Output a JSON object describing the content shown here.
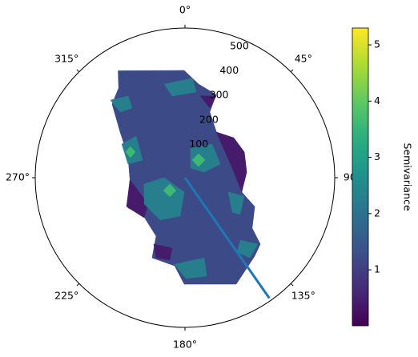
{
  "chart_data": {
    "type": "polar_contour",
    "theta_zero": "N",
    "theta_direction": "clockwise",
    "theta_ticks": [
      {
        "value": 0,
        "label": "0°"
      },
      {
        "value": 45,
        "label": "45°"
      },
      {
        "value": 90,
        "label": "90°"
      },
      {
        "value": 135,
        "label": "135°"
      },
      {
        "value": 180,
        "label": "180°"
      },
      {
        "value": 225,
        "label": "225°"
      },
      {
        "value": 270,
        "label": "270°"
      },
      {
        "value": 315,
        "label": "315°"
      }
    ],
    "rlim": [
      0,
      565
    ],
    "rticks": [
      100,
      200,
      300,
      400,
      500
    ],
    "regions": [
      {
        "level": 1.2,
        "points": [
          [
            328,
            476
          ],
          [
            359.6,
            405
          ],
          [
            8.3,
            357
          ],
          [
            20.6,
            335
          ],
          [
            20.7,
            265
          ],
          [
            38.3,
            200
          ],
          [
            61.8,
            237
          ],
          [
            84.7,
            228
          ],
          [
            104.2,
            221
          ],
          [
            112.5,
            285
          ],
          [
            126.9,
            317
          ],
          [
            131.4,
            379
          ],
          [
            138.4,
            396
          ],
          [
            154.3,
            446
          ],
          [
            180.4,
            402
          ],
          [
            186.7,
            335
          ],
          [
            202.3,
            327
          ],
          [
            206.3,
            246
          ],
          [
            229,
            212
          ],
          [
            241.8,
            243
          ],
          [
            268.3,
            208
          ],
          [
            290.8,
            230
          ],
          [
            305.1,
            299
          ],
          [
            315.3,
            391
          ],
          [
            323.5,
            421
          ]
        ]
      },
      {
        "level": 0.4,
        "points": [
          [
            34.4,
            209
          ],
          [
            50.7,
            238
          ],
          [
            66.6,
            244
          ],
          [
            84.8,
            234
          ],
          [
            104.2,
            221
          ],
          [
            78.5,
            182
          ]
        ]
      },
      {
        "level": 0.4,
        "points": [
          [
            267.5,
            208
          ],
          [
            243.7,
            246
          ],
          [
            225.6,
            216
          ],
          [
            234.3,
            171
          ],
          [
            258,
            188
          ]
        ]
      },
      {
        "level": 0.4,
        "points": [
          [
            10.6,
            314
          ],
          [
            20.9,
            330
          ],
          [
            19.6,
            279
          ]
        ]
      },
      {
        "level": 0.4,
        "points": [
          [
            205.2,
            277
          ],
          [
            190.3,
            270
          ],
          [
            190.5,
            316
          ],
          [
            199.8,
            321
          ]
        ]
      },
      {
        "level": 2.3,
        "points": [
          [
            316.2,
            406
          ],
          [
            325.2,
            375
          ],
          [
            322.8,
            330
          ],
          [
            315.4,
            348
          ]
        ]
      },
      {
        "level": 2.3,
        "points": [
          [
            347.5,
            362
          ],
          [
            4.2,
            376
          ],
          [
            7.5,
            326
          ],
          [
            351.1,
            312
          ]
        ]
      },
      {
        "level": 2.3,
        "points": [
          [
            261.1,
            156
          ],
          [
            270,
            79
          ],
          [
            183.2,
            54
          ],
          [
            187.1,
            146
          ],
          [
            210.3,
            185
          ],
          [
            237.1,
            183
          ]
        ]
      },
      {
        "level": 2.3,
        "points": [
          [
            10.7,
            114
          ],
          [
            39,
            163
          ],
          [
            68.9,
            143
          ],
          [
            73.7,
            76
          ],
          [
            30.3,
            42
          ]
        ]
      },
      {
        "level": 2.3,
        "points": [
          [
            298,
            270
          ],
          [
            310.4,
            242
          ],
          [
            292.5,
            173
          ],
          [
            283.5,
            221
          ]
        ]
      },
      {
        "level": 2.3,
        "points": [
          [
            108.4,
            172
          ],
          [
            107.3,
            234
          ],
          [
            123.7,
            250
          ],
          [
            126.1,
            221
          ]
        ]
      },
      {
        "level": 2.3,
        "points": [
          [
            186.9,
            329
          ],
          [
            166.5,
            311
          ],
          [
            167.6,
            380
          ],
          [
            179.5,
            381
          ]
        ]
      },
      {
        "level": 2.3,
        "points": [
          [
            138.5,
            315
          ],
          [
            132.4,
            372
          ],
          [
            141,
            389
          ],
          [
            145,
            343
          ]
        ]
      },
      {
        "level": 3.6,
        "points": [
          [
            29.5,
            104
          ],
          [
            48.7,
            101
          ],
          [
            50.5,
            66
          ],
          [
            22.2,
            72
          ]
        ]
      },
      {
        "level": 3.6,
        "points": [
          [
            247.2,
            62
          ],
          [
            214.5,
            59
          ],
          [
            218.4,
            92
          ],
          [
            239.4,
            95
          ]
        ]
      },
      {
        "level": 3.6,
        "points": [
          [
            299.8,
            237
          ],
          [
            297.3,
            211
          ],
          [
            290.2,
            219
          ],
          [
            293.4,
            244
          ]
        ]
      }
    ],
    "series": [
      {
        "color": "#1f77b4",
        "theta": [
          145,
          145
        ],
        "r": [
          0,
          555
        ]
      }
    ],
    "colorbar": {
      "label": "Semivariance",
      "cmap": "viridis",
      "clim": [
        0.005,
        5.3
      ],
      "ticks": [
        1,
        2,
        3,
        4,
        5
      ]
    }
  }
}
